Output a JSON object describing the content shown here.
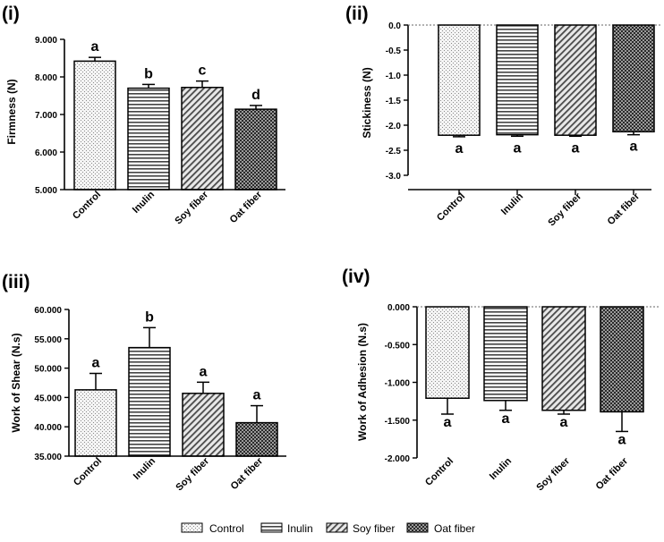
{
  "legend": [
    {
      "name": "Control",
      "pattern": "dots"
    },
    {
      "name": "Inulin",
      "pattern": "hlines"
    },
    {
      "name": "Soy fiber",
      "pattern": "diag"
    },
    {
      "name": "Oat fiber",
      "pattern": "checker"
    }
  ],
  "chart_data": [
    {
      "type": "bar",
      "panel_label": "(i)",
      "ylabel": "Firmness (N)",
      "categories": [
        "Control",
        "Inulin",
        "Soy fiber",
        "Oat fiber"
      ],
      "values": [
        8.42,
        7.7,
        7.72,
        7.14
      ],
      "errors": [
        0.1,
        0.1,
        0.17,
        0.1
      ],
      "letters": [
        "a",
        "b",
        "c",
        "d"
      ],
      "ylim": [
        5,
        9
      ],
      "ticks": [
        5,
        6,
        7,
        8,
        9
      ],
      "tick_labels": [
        "5.000",
        "6.000",
        "7.000",
        "8.000",
        "9.000"
      ]
    },
    {
      "type": "bar",
      "panel_label": "(ii)",
      "ylabel": "Stickiness (N)",
      "categories": [
        "Control",
        "Inulin",
        "Soy fiber",
        "Oat fiber"
      ],
      "values": [
        -2.2,
        -2.19,
        -2.2,
        -2.13
      ],
      "errors": [
        0.03,
        0.03,
        0.02,
        0.06
      ],
      "letters": [
        "a",
        "a",
        "a",
        "a"
      ],
      "ylim": [
        -3.0,
        0.0
      ],
      "ticks": [
        0.0,
        -0.5,
        -1.0,
        -1.5,
        -2.0,
        -2.5,
        -3.0
      ],
      "tick_labels": [
        "0.0",
        "-0.5",
        "-1.0",
        "-1.5",
        "-2.0",
        "-2.5",
        "-3.0"
      ]
    },
    {
      "type": "bar",
      "panel_label": "(iii)",
      "ylabel": "Work of Shear (N.s)",
      "categories": [
        "Control",
        "Inulin",
        "Soy fiber",
        "Oat fiber"
      ],
      "values": [
        46.3,
        53.5,
        45.7,
        40.7
      ],
      "errors": [
        2.8,
        3.4,
        1.9,
        2.9
      ],
      "letters": [
        "a",
        "b",
        "a",
        "a"
      ],
      "ylim": [
        35,
        60
      ],
      "ticks": [
        35,
        40,
        45,
        50,
        55,
        60
      ],
      "tick_labels": [
        "35.000",
        "40.000",
        "45.000",
        "50.000",
        "55.000",
        "60.000"
      ]
    },
    {
      "type": "bar",
      "panel_label": "(iv)",
      "ylabel": "Work of Adhesion (N.s)",
      "categories": [
        "Control",
        "Inulin",
        "Soy fiber",
        "Oat fiber"
      ],
      "values": [
        -1.21,
        -1.24,
        -1.37,
        -1.39
      ],
      "errors": [
        0.21,
        0.13,
        0.05,
        0.26
      ],
      "letters": [
        "a",
        "a",
        "a",
        "a"
      ],
      "ylim": [
        -2.0,
        0.0
      ],
      "ticks": [
        0.0,
        -0.5,
        -1.0,
        -1.5,
        -2.0
      ],
      "tick_labels": [
        "0.000",
        "-0.500",
        "-1.000",
        "-1.500",
        "-2.000"
      ]
    }
  ]
}
